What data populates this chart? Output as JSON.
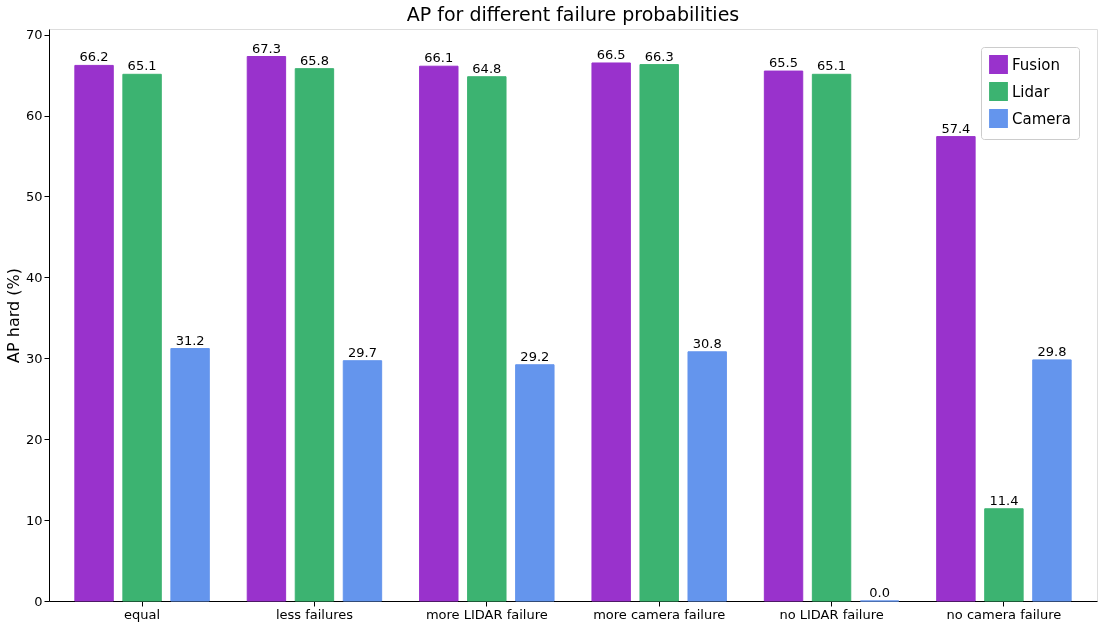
{
  "chart_data": {
    "type": "bar",
    "title": "AP for different failure probabilities",
    "ylabel": "AP hard (%)",
    "categories": [
      "equal",
      "less failures",
      "more LIDAR failure",
      "more camera failure",
      "no LIDAR failure",
      "no camera failure"
    ],
    "series": [
      {
        "name": "Fusion",
        "color": "#9932cc",
        "values": [
          66.2,
          67.3,
          66.1,
          66.5,
          65.5,
          57.4
        ],
        "value_labels": [
          "66.2",
          "67.3",
          "66.1",
          "66.5",
          "65.5",
          "57.4"
        ]
      },
      {
        "name": "Lidar",
        "color": "#3cb371",
        "values": [
          65.1,
          65.8,
          64.8,
          66.3,
          65.1,
          11.4
        ],
        "value_labels": [
          "65.1",
          "65.8",
          "64.8",
          "66.3",
          "65.1",
          "11.4"
        ]
      },
      {
        "name": "Camera",
        "color": "#6495ed",
        "values": [
          31.2,
          29.7,
          29.2,
          30.8,
          0,
          29.8
        ],
        "value_labels": [
          "31.2",
          "29.7",
          "29.2",
          "30.8",
          "0.0",
          "29.8"
        ]
      }
    ],
    "ylim": [
      0,
      70.7
    ],
    "yticks": [
      0,
      10,
      20,
      30,
      40,
      50,
      60,
      70
    ],
    "legend": "top right",
    "grid": false
  }
}
